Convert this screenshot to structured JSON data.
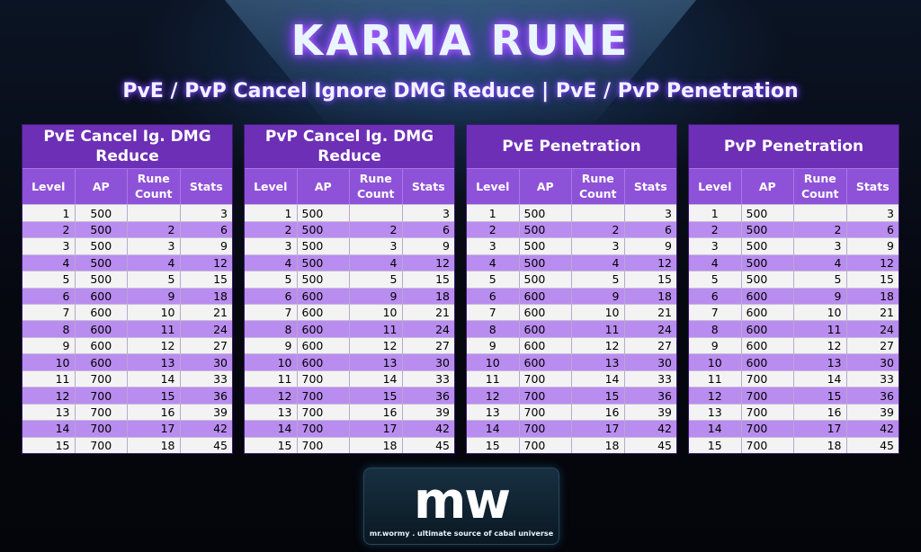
{
  "title": "KARMA RUNE",
  "subtitle": "PvE / PvP Cancel Ignore DMG Reduce | PvE / PvP Penetration",
  "columns": [
    "Level",
    "AP",
    "Rune Count",
    "Stats"
  ],
  "tables": [
    {
      "header": "PvE Cancel Ig. DMG Reduce"
    },
    {
      "header": "PvP Cancel Ig. DMG Reduce"
    },
    {
      "header": "PvE Penetration"
    },
    {
      "header": "PvP Penetration"
    }
  ],
  "rows": [
    {
      "level": "1",
      "ap": "500",
      "rune": "",
      "stats": "3"
    },
    {
      "level": "2",
      "ap": "500",
      "rune": "2",
      "stats": "6"
    },
    {
      "level": "3",
      "ap": "500",
      "rune": "3",
      "stats": "9"
    },
    {
      "level": "4",
      "ap": "500",
      "rune": "4",
      "stats": "12"
    },
    {
      "level": "5",
      "ap": "500",
      "rune": "5",
      "stats": "15"
    },
    {
      "level": "6",
      "ap": "600",
      "rune": "9",
      "stats": "18"
    },
    {
      "level": "7",
      "ap": "600",
      "rune": "10",
      "stats": "21"
    },
    {
      "level": "8",
      "ap": "600",
      "rune": "11",
      "stats": "24"
    },
    {
      "level": "9",
      "ap": "600",
      "rune": "12",
      "stats": "27"
    },
    {
      "level": "10",
      "ap": "600",
      "rune": "13",
      "stats": "30"
    },
    {
      "level": "11",
      "ap": "700",
      "rune": "14",
      "stats": "33"
    },
    {
      "level": "12",
      "ap": "700",
      "rune": "15",
      "stats": "36"
    },
    {
      "level": "13",
      "ap": "700",
      "rune": "16",
      "stats": "39"
    },
    {
      "level": "14",
      "ap": "700",
      "rune": "17",
      "stats": "42"
    },
    {
      "level": "15",
      "ap": "700",
      "rune": "18",
      "stats": "45"
    }
  ],
  "logo": {
    "mark": "mw",
    "tagline": "mr.wormy . ultimate source of cabal universe"
  },
  "colors": {
    "header_dark": "#6c2fb6",
    "header_light": "#8e52d8",
    "row_purple": "#b98cf0",
    "row_light": "#f3f3f3",
    "title_glow": "#8a3cff"
  }
}
